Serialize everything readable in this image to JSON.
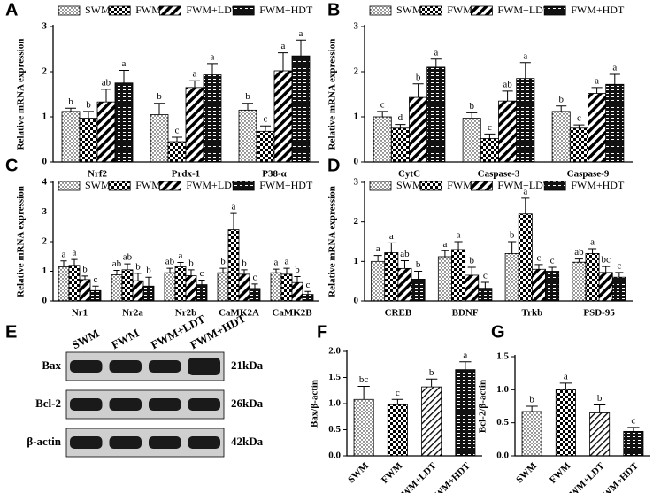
{
  "chart_data": [
    {
      "panel": "A",
      "type": "bar",
      "ylabel": "Relative mRNA expression",
      "categories": [
        "Nrf2",
        "Prdx-1",
        "P38-α"
      ],
      "ylim": [
        0,
        3
      ],
      "yticks": [
        0,
        1,
        2,
        3
      ],
      "series": [
        {
          "name": "SWM",
          "color": "#000000",
          "pattern": "dots",
          "values": [
            1.12,
            1.05,
            1.15
          ],
          "errors": [
            0.07,
            0.25,
            0.15
          ],
          "significance": [
            "b",
            "b",
            "b"
          ]
        },
        {
          "name": "FWM",
          "color": "#000000",
          "pattern": "checker",
          "values": [
            0.97,
            0.45,
            0.68
          ],
          "errors": [
            0.15,
            0.1,
            0.12
          ],
          "significance": [
            "b",
            "c",
            "c"
          ]
        },
        {
          "name": "FWM+LDT",
          "color": "#000000",
          "pattern": "diag",
          "values": [
            1.33,
            1.65,
            2.02
          ],
          "errors": [
            0.28,
            0.15,
            0.4
          ],
          "significance": [
            "ab",
            "a",
            "a"
          ]
        },
        {
          "name": "FWM+HDT",
          "color": "#000000",
          "pattern": "brick",
          "values": [
            1.75,
            1.93,
            2.35
          ],
          "errors": [
            0.28,
            0.25,
            0.35
          ],
          "significance": [
            "a",
            "a",
            "a"
          ]
        }
      ]
    },
    {
      "panel": "B",
      "type": "bar",
      "ylabel": "Relative mRNA expression",
      "categories": [
        "CytC",
        "Caspase-3",
        "Caspase-9"
      ],
      "ylim": [
        0,
        3
      ],
      "yticks": [
        0,
        1,
        2,
        3
      ],
      "series": [
        {
          "name": "SWM",
          "color": "#000000",
          "pattern": "dots",
          "values": [
            1.0,
            0.97,
            1.12
          ],
          "errors": [
            0.12,
            0.12,
            0.12
          ],
          "significance": [
            "c",
            "b",
            "b"
          ]
        },
        {
          "name": "FWM",
          "color": "#000000",
          "pattern": "checker",
          "values": [
            0.75,
            0.52,
            0.75
          ],
          "errors": [
            0.08,
            0.1,
            0.07
          ],
          "significance": [
            "d",
            "c",
            "c"
          ]
        },
        {
          "name": "FWM+LDT",
          "color": "#000000",
          "pattern": "diag",
          "values": [
            1.43,
            1.35,
            1.52
          ],
          "errors": [
            0.3,
            0.22,
            0.13
          ],
          "significance": [
            "b",
            "ab",
            "a"
          ]
        },
        {
          "name": "FWM+HDT",
          "color": "#000000",
          "pattern": "brick",
          "values": [
            2.1,
            1.85,
            1.72
          ],
          "errors": [
            0.18,
            0.35,
            0.22
          ],
          "significance": [
            "a",
            "a",
            "a"
          ]
        }
      ]
    },
    {
      "panel": "C",
      "type": "bar",
      "ylabel": "Relative mRNA expression",
      "categories": [
        "Nr1",
        "Nr2a",
        "Nr2b",
        "CaMK2A",
        "CaMK2B"
      ],
      "ylim": [
        0,
        4
      ],
      "yticks": [
        0,
        1,
        2,
        3,
        4
      ],
      "series": [
        {
          "name": "SWM",
          "color": "#000000",
          "pattern": "dots",
          "values": [
            1.15,
            0.88,
            0.95,
            0.95,
            0.95
          ],
          "errors": [
            0.2,
            0.15,
            0.15,
            0.15,
            0.12
          ],
          "significance": [
            "a",
            "ab",
            "ab",
            "b",
            "a"
          ]
        },
        {
          "name": "FWM",
          "color": "#000000",
          "pattern": "checker",
          "values": [
            1.2,
            1.05,
            1.15,
            2.4,
            0.9
          ],
          "errors": [
            0.2,
            0.2,
            0.15,
            0.55,
            0.2
          ],
          "significance": [
            "a",
            "ab",
            "a",
            "a",
            "a"
          ]
        },
        {
          "name": "FWM+LDT",
          "color": "#000000",
          "pattern": "diag",
          "values": [
            0.72,
            0.68,
            0.85,
            0.9,
            0.62
          ],
          "errors": [
            0.12,
            0.25,
            0.2,
            0.15,
            0.2
          ],
          "significance": [
            "b",
            "b",
            "b",
            "b",
            "b"
          ]
        },
        {
          "name": "FWM+HDT",
          "color": "#000000",
          "pattern": "brick",
          "values": [
            0.35,
            0.5,
            0.55,
            0.42,
            0.22
          ],
          "errors": [
            0.15,
            0.3,
            0.15,
            0.15,
            0.1
          ],
          "significance": [
            "c",
            "b",
            "c",
            "c",
            "c"
          ]
        }
      ]
    },
    {
      "panel": "D",
      "type": "bar",
      "ylabel": "Relative mRNA expression",
      "categories": [
        "CREB",
        "BDNF",
        "Trkb",
        "PSD-95"
      ],
      "ylim": [
        0,
        3
      ],
      "yticks": [
        0,
        1,
        2,
        3
      ],
      "series": [
        {
          "name": "SWM",
          "color": "#000000",
          "pattern": "dots",
          "values": [
            1.0,
            1.12,
            1.2,
            0.98
          ],
          "errors": [
            0.15,
            0.15,
            0.3,
            0.08
          ],
          "significance": [
            "a",
            "a",
            "b",
            "ab"
          ]
        },
        {
          "name": "FWM",
          "color": "#000000",
          "pattern": "checker",
          "values": [
            1.22,
            1.3,
            2.2,
            1.2
          ],
          "errors": [
            0.25,
            0.2,
            0.4,
            0.12
          ],
          "significance": [
            "a",
            "a",
            "a",
            "a"
          ]
        },
        {
          "name": "FWM+LDT",
          "color": "#000000",
          "pattern": "diag",
          "values": [
            0.82,
            0.65,
            0.8,
            0.72
          ],
          "errors": [
            0.2,
            0.2,
            0.12,
            0.15
          ],
          "significance": [
            "ab",
            "b",
            "c",
            "bc"
          ]
        },
        {
          "name": "FWM+HDT",
          "color": "#000000",
          "pattern": "brick",
          "values": [
            0.55,
            0.32,
            0.75,
            0.6
          ],
          "errors": [
            0.2,
            0.15,
            0.1,
            0.12
          ],
          "significance": [
            "b",
            "c",
            "c",
            "c"
          ]
        }
      ]
    },
    {
      "panel": "F",
      "type": "bar",
      "ylabel": "Bax/β-actin",
      "categories": [
        "SWM",
        "FWM",
        "FWM+LDT",
        "FWM+HDT"
      ],
      "ylim": [
        0,
        2
      ],
      "yticks": [
        {
          "value": 0,
          "label": "0.0"
        },
        {
          "value": 0.5,
          "label": "0.5"
        },
        {
          "value": 1,
          "label": "1.0"
        },
        {
          "value": 1.5,
          "label": "1.5"
        },
        {
          "value": 2,
          "label": "2.0"
        }
      ],
      "color": "#000000",
      "patterns": [
        "dots",
        "checker",
        "hatch",
        "brick"
      ],
      "values": [
        1.08,
        0.98,
        1.32,
        1.65
      ],
      "errors": [
        0.25,
        0.1,
        0.15,
        0.15
      ],
      "significance": [
        "bc",
        "c",
        "b",
        "a"
      ]
    },
    {
      "panel": "G",
      "type": "bar",
      "ylabel": "Bcl-2/β-actin",
      "categories": [
        "SWM",
        "FWM",
        "FWM+LDT",
        "FWM+HDT"
      ],
      "ylim": [
        0,
        1.5
      ],
      "yticks": [
        {
          "value": 0,
          "label": "0.0"
        },
        {
          "value": 0.5,
          "label": "0.5"
        },
        {
          "value": 1,
          "label": "1.0"
        },
        {
          "value": 1.5,
          "label": "1.5"
        }
      ],
      "color": "#000000",
      "patterns": [
        "dots",
        "checker",
        "hatch",
        "brick"
      ],
      "values": [
        0.67,
        1.0,
        0.65,
        0.37
      ],
      "errors": [
        0.08,
        0.1,
        0.12,
        0.06
      ],
      "significance": [
        "b",
        "a",
        "b",
        "c"
      ]
    }
  ],
  "blot": {
    "panel": "E",
    "lanes": [
      "SWM",
      "FWM",
      "FWM+LDT",
      "FWM+HDT"
    ],
    "rows": [
      {
        "name": "Bax",
        "size": "21kDa"
      },
      {
        "name": "Bcl-2",
        "size": "26kDa"
      },
      {
        "name": "β-actin",
        "size": "42kDa"
      }
    ]
  }
}
